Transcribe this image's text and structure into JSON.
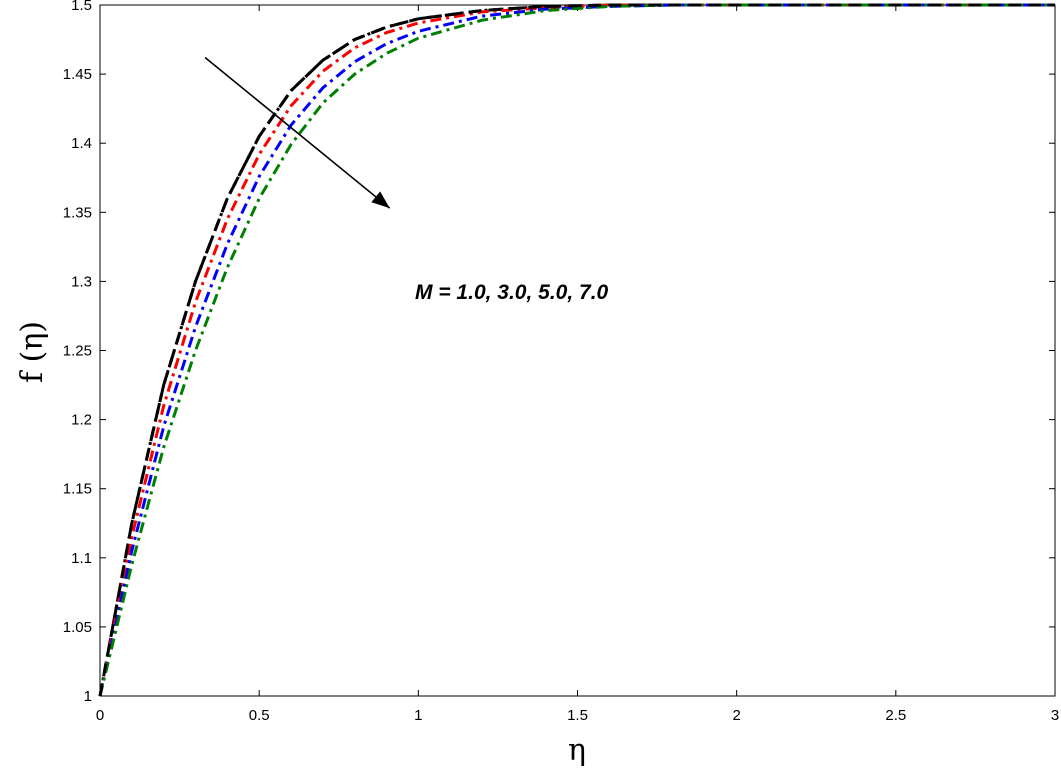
{
  "chart_data": {
    "type": "line",
    "title": "",
    "xlabel": "η",
    "ylabel": "f (η)",
    "xlim": [
      0,
      3
    ],
    "ylim": [
      1,
      1.5
    ],
    "xticks": [
      0,
      0.5,
      1,
      1.5,
      2,
      2.5,
      3
    ],
    "xtick_labels": [
      "0",
      "0.5",
      "1",
      "1.5",
      "2",
      "2.5",
      "3"
    ],
    "yticks": [
      1,
      1.05,
      1.1,
      1.15,
      1.2,
      1.25,
      1.3,
      1.35,
      1.4,
      1.45,
      1.5
    ],
    "ytick_labels": [
      "1",
      "1.05",
      "1.1",
      "1.15",
      "1.2",
      "1.25",
      "1.3",
      "1.35",
      "1.4",
      "1.45",
      "1.5"
    ],
    "grid": false,
    "annotation": {
      "text": "M = 1.0, 3.0, 5.0, 7.0",
      "arrow_from": [
        0.33,
        1.462
      ],
      "arrow_to": [
        0.91,
        1.353
      ]
    },
    "x": [
      0,
      0.1,
      0.2,
      0.3,
      0.4,
      0.5,
      0.6,
      0.7,
      0.8,
      0.9,
      1.0,
      1.2,
      1.4,
      1.6,
      1.8,
      2.0,
      2.5,
      3.0
    ],
    "series": [
      {
        "color": "#000000",
        "dash": "dashdot",
        "values": [
          1.0,
          1.125,
          1.225,
          1.3,
          1.36,
          1.405,
          1.438,
          1.46,
          1.475,
          1.484,
          1.49,
          1.496,
          1.499,
          1.5,
          1.5,
          1.5,
          1.5,
          1.5
        ]
      },
      {
        "color": "#ff0000",
        "dash": "dashdot",
        "values": [
          1.0,
          1.115,
          1.21,
          1.285,
          1.345,
          1.392,
          1.427,
          1.452,
          1.469,
          1.48,
          1.487,
          1.495,
          1.498,
          1.5,
          1.5,
          1.5,
          1.5,
          1.5
        ]
      },
      {
        "color": "#0000ff",
        "dash": "dashdot",
        "values": [
          1.0,
          1.105,
          1.195,
          1.267,
          1.327,
          1.376,
          1.413,
          1.44,
          1.459,
          1.472,
          1.481,
          1.492,
          1.497,
          1.499,
          1.5,
          1.5,
          1.5,
          1.5
        ]
      },
      {
        "color": "#008000",
        "dash": "dashdot",
        "values": [
          1.0,
          1.095,
          1.18,
          1.25,
          1.31,
          1.36,
          1.399,
          1.429,
          1.45,
          1.465,
          1.476,
          1.489,
          1.496,
          1.499,
          1.5,
          1.5,
          1.5,
          1.5
        ]
      },
      {
        "color": "#000000",
        "dash": "dashed",
        "values": [
          1.0,
          1.125,
          1.225,
          1.3,
          1.36,
          1.405,
          1.438,
          1.46,
          1.475,
          1.484,
          1.49,
          1.496,
          1.499,
          1.5,
          1.5,
          1.5,
          1.5,
          1.5
        ]
      }
    ]
  }
}
